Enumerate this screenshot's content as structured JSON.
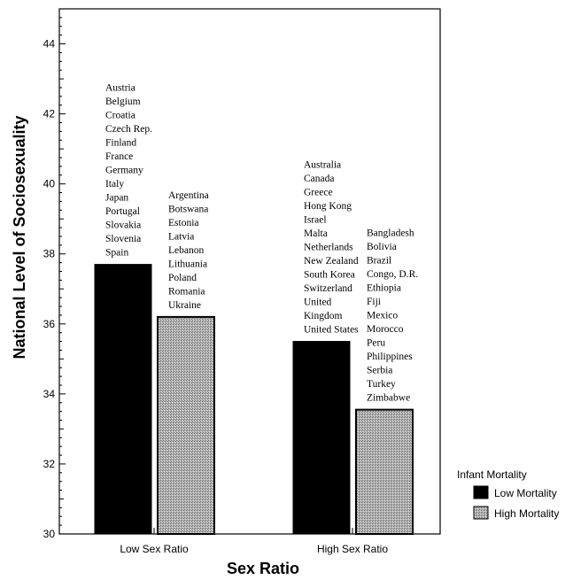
{
  "chart_data": {
    "type": "bar",
    "xlabel": "Sex Ratio",
    "ylabel": "National Level of Sociosexuality",
    "ylim": [
      30,
      45
    ],
    "yticks": [
      30,
      32,
      34,
      36,
      38,
      40,
      42,
      44
    ],
    "grid": false,
    "legend_position": "right",
    "legend_title": "Infant Mortality",
    "categories": [
      "Low Sex Ratio",
      "High Sex Ratio"
    ],
    "series": [
      {
        "name": "Low Mortality",
        "color": "#000000",
        "values": [
          37.7,
          35.5
        ],
        "countries": [
          [
            "Austria",
            "Belgium",
            "Croatia",
            "Czech Rep.",
            "Finland",
            "France",
            "Germany",
            "Italy",
            "Japan",
            "Portugal",
            "Slovakia",
            "Slovenia",
            "Spain"
          ],
          [
            "Australia",
            "Canada",
            "Greece",
            "Hong Kong",
            "Israel",
            "Malta",
            "Netherlands",
            "New Zealand",
            "South Korea",
            "Switzerland",
            "United",
            "Kingdom",
            "United States"
          ]
        ]
      },
      {
        "name": "High Mortality",
        "color": "#a8a8a8",
        "values": [
          36.2,
          33.55
        ],
        "countries": [
          [
            "Argentina",
            "Botswana",
            "Estonia",
            "Latvia",
            "Lebanon",
            "Lithuania",
            "Poland",
            "Romania",
            "Ukraine"
          ],
          [
            "Bangladesh",
            "Bolivia",
            "Brazil",
            "Congo, D.R.",
            "Ethiopia",
            "Fiji",
            "Mexico",
            "Morocco",
            "Peru",
            "Philippines",
            "Serbia",
            "Turkey",
            "Zimbabwe"
          ]
        ]
      }
    ]
  }
}
